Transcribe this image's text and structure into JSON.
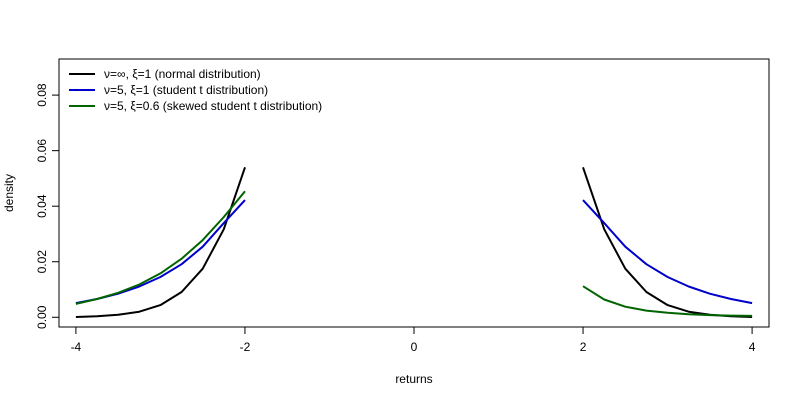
{
  "chart_data": {
    "type": "line",
    "title": "",
    "xlabel": "returns",
    "ylabel": "density",
    "xlim": [
      -4.2,
      4.2
    ],
    "ylim": [
      -0.0035,
      0.093
    ],
    "x_ticks": [
      -4,
      -2,
      0,
      2,
      4
    ],
    "x_tick_labels": [
      "-4",
      "-2",
      "0",
      "2",
      "4"
    ],
    "y_ticks": [
      0.0,
      0.02,
      0.04,
      0.06,
      0.08
    ],
    "y_tick_labels": [
      "0.00",
      "0.02",
      "0.04",
      "0.06",
      "0.08"
    ],
    "grid": false,
    "legend_position": "top-left",
    "series": [
      {
        "name": "ν=∞, ξ=1 (normal distribution)",
        "color": "#000000",
        "segments": [
          {
            "x": [
              -4.0,
              -3.75,
              -3.5,
              -3.25,
              -3.0,
              -2.75,
              -2.5,
              -2.25,
              -2.0
            ],
            "y": [
              0.0001,
              0.0004,
              0.0009,
              0.002,
              0.0044,
              0.0091,
              0.0175,
              0.0317,
              0.054
            ]
          },
          {
            "x": [
              2.0,
              2.25,
              2.5,
              2.75,
              3.0,
              3.25,
              3.5,
              3.75,
              4.0
            ],
            "y": [
              0.054,
              0.0317,
              0.0175,
              0.0091,
              0.0044,
              0.002,
              0.0009,
              0.0004,
              0.0001
            ]
          }
        ]
      },
      {
        "name": "ν=5, ξ=1 (student t distribution)",
        "color": "#0000cc",
        "segments": [
          {
            "x": [
              -4.0,
              -3.75,
              -3.5,
              -3.25,
              -3.0,
              -2.75,
              -2.5,
              -2.25,
              -2.0
            ],
            "y": [
              0.0051,
              0.0066,
              0.0085,
              0.0111,
              0.0145,
              0.0191,
              0.0254,
              0.0339,
              0.0422
            ]
          },
          {
            "x": [
              2.0,
              2.25,
              2.5,
              2.75,
              3.0,
              3.25,
              3.5,
              3.75,
              4.0
            ],
            "y": [
              0.0422,
              0.0339,
              0.0254,
              0.0191,
              0.0145,
              0.0111,
              0.0085,
              0.0066,
              0.0051
            ]
          }
        ]
      },
      {
        "name": "ν=5, ξ=0.6 (skewed student t distribution)",
        "color": "#006400",
        "segments": [
          {
            "x": [
              -4.0,
              -3.75,
              -3.5,
              -3.25,
              -3.0,
              -2.75,
              -2.5,
              -2.25,
              -2.0
            ],
            "y": [
              0.0048,
              0.0066,
              0.0088,
              0.0118,
              0.0158,
              0.0211,
              0.0278,
              0.0361,
              0.0454
            ]
          },
          {
            "x": [
              2.0,
              2.25,
              2.5,
              2.75,
              3.0,
              3.25,
              3.5,
              3.75,
              4.0
            ],
            "y": [
              0.0112,
              0.0064,
              0.0038,
              0.0024,
              0.0016,
              0.0011,
              0.0008,
              0.0006,
              0.0005
            ]
          }
        ]
      }
    ]
  }
}
